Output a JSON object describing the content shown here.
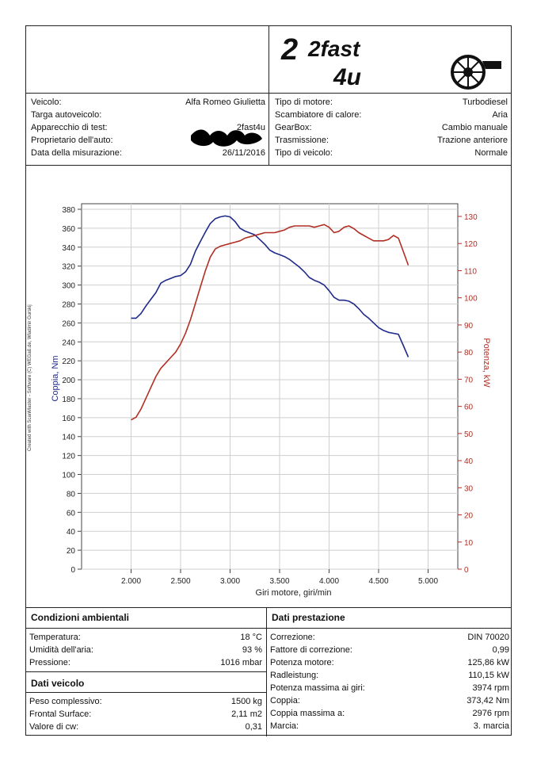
{
  "logo": {
    "line1": "2fast",
    "line2": "4u"
  },
  "vehicle_info": {
    "left": [
      {
        "label": "Veicolo:",
        "value": "Alfa Romeo Giulietta"
      },
      {
        "label": "Targa autoveicolo:",
        "value": ""
      },
      {
        "label": "Apparecchio di test:",
        "value": "2fast4u"
      },
      {
        "label": "Proprietario dell'auto:",
        "value": ""
      },
      {
        "label": "Data della misurazione:",
        "value": "26/11/2016"
      }
    ],
    "right": [
      {
        "label": "Tipo di motore:",
        "value": "Turbodiesel"
      },
      {
        "label": "Scambiatore di calore:",
        "value": "Aria"
      },
      {
        "label": "GearBox:",
        "value": "Cambio manuale"
      },
      {
        "label": "Trasmissione:",
        "value": "Trazione anteriore"
      },
      {
        "label": "Tipo di veicolo:",
        "value": "Normale"
      }
    ]
  },
  "credit": "Created with ScanMaster - Software (C) WEGaß.de, Wladimir Gurskij",
  "chart_data": {
    "type": "line",
    "xlabel": "Giri motore, giri/min",
    "ylabel": "Coppia, Nm",
    "y2label": "Potenza, kW",
    "xlim": [
      1500,
      5300
    ],
    "ylim": [
      0,
      380
    ],
    "y2lim": [
      0,
      130
    ],
    "x_ticks": [
      2000,
      2500,
      3000,
      3500,
      4000,
      4500,
      5000
    ],
    "x_tick_labels": [
      "2.000",
      "2.500",
      "3.000",
      "3.500",
      "4.000",
      "4.500",
      "5.000"
    ],
    "y_ticks": [
      0,
      20,
      40,
      60,
      80,
      100,
      120,
      140,
      160,
      180,
      200,
      220,
      240,
      260,
      280,
      300,
      320,
      340,
      360,
      380
    ],
    "y2_ticks": [
      0,
      10,
      20,
      30,
      40,
      50,
      60,
      70,
      80,
      90,
      100,
      110,
      120,
      130
    ],
    "grid": true,
    "series": [
      {
        "axis": "left",
        "color": "#1f2a8a",
        "x": [
          2000,
          2050,
          2100,
          2150,
          2200,
          2250,
          2300,
          2350,
          2400,
          2450,
          2500,
          2550,
          2600,
          2650,
          2700,
          2750,
          2800,
          2850,
          2900,
          2950,
          3000,
          3050,
          3100,
          3150,
          3200,
          3250,
          3300,
          3350,
          3400,
          3450,
          3500,
          3550,
          3600,
          3650,
          3700,
          3750,
          3800,
          3850,
          3900,
          3950,
          4000,
          4050,
          4100,
          4150,
          4200,
          4250,
          4300,
          4350,
          4400,
          4450,
          4500,
          4550,
          4600,
          4650,
          4700,
          4750,
          4800
        ],
        "values": [
          265,
          265,
          270,
          278,
          285,
          292,
          302,
          305,
          307,
          309,
          310,
          314,
          322,
          336,
          346,
          356,
          365,
          370,
          372,
          373,
          372,
          367,
          360,
          357,
          355,
          353,
          348,
          343,
          337,
          334,
          332,
          330,
          327,
          323,
          319,
          314,
          308,
          305,
          303,
          300,
          294,
          287,
          284,
          284,
          283,
          280,
          275,
          269,
          265,
          260,
          255,
          252,
          250,
          249,
          248,
          236,
          224
        ]
      },
      {
        "axis": "right",
        "color": "#b22f24",
        "x": [
          2000,
          2050,
          2100,
          2150,
          2200,
          2250,
          2300,
          2350,
          2400,
          2450,
          2500,
          2550,
          2600,
          2650,
          2700,
          2750,
          2800,
          2850,
          2900,
          2950,
          3000,
          3050,
          3100,
          3150,
          3200,
          3250,
          3300,
          3350,
          3400,
          3450,
          3500,
          3550,
          3600,
          3650,
          3700,
          3750,
          3800,
          3850,
          3900,
          3950,
          4000,
          4050,
          4100,
          4150,
          4200,
          4250,
          4300,
          4350,
          4400,
          4450,
          4500,
          4550,
          4600,
          4650,
          4700,
          4750,
          4800
        ],
        "values": [
          55,
          56,
          59,
          63,
          67,
          71,
          74,
          76,
          78,
          80,
          83,
          87,
          92,
          98,
          104,
          110,
          115,
          118,
          119,
          119.5,
          120,
          120.5,
          121,
          122,
          122.5,
          123,
          123.5,
          124,
          124,
          124,
          124.5,
          125,
          126,
          126.5,
          126.5,
          126.5,
          126.5,
          126,
          126.5,
          127,
          126,
          124,
          124.5,
          126,
          126.5,
          125.5,
          124,
          123,
          122,
          121,
          121,
          121,
          121.5,
          123,
          122,
          117,
          112
        ]
      }
    ]
  },
  "ambient": {
    "title": "Condizioni ambientali",
    "rows": [
      {
        "label": "Temperatura:",
        "value": "18 °C"
      },
      {
        "label": "Umidità dell'aria:",
        "value": "93 %"
      },
      {
        "label": "Pressione:",
        "value": "1016 mbar"
      }
    ]
  },
  "vehicle_data": {
    "title": "Dati veicolo",
    "rows": [
      {
        "label": "Peso complessivo:",
        "value": "1500 kg"
      },
      {
        "label": "Frontal Surface:",
        "value": "2,11 m2"
      },
      {
        "label": "Valore di cw:",
        "value": "0,31"
      }
    ]
  },
  "performance": {
    "title": "Dati prestazione",
    "rows": [
      {
        "label": "Correzione:",
        "value": "DIN 70020"
      },
      {
        "label": "Fattore di correzione:",
        "value": "0,99"
      },
      {
        "label": "Potenza motore:",
        "value": "125,86 kW"
      },
      {
        "label": "Radleistung:",
        "value": "110,15 kW"
      },
      {
        "label": "Potenza massima ai giri:",
        "value": "3974 rpm"
      },
      {
        "label": "Coppia:",
        "value": "373,42 Nm"
      },
      {
        "label": "Coppia massima a:",
        "value": "2976 rpm"
      },
      {
        "label": "Marcia:",
        "value": "3. marcia"
      }
    ]
  }
}
